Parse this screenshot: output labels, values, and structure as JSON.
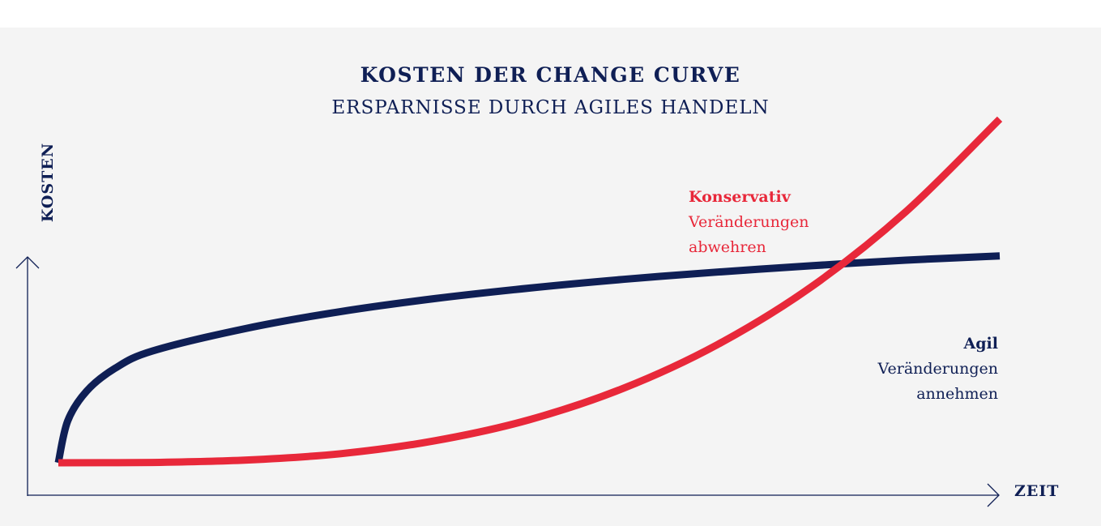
{
  "chart_data": {
    "type": "line",
    "title": "KOSTEN DER CHANGE CURVE",
    "subtitle": "ERSPARNISSE DURCH AGILES HANDELN",
    "xlabel": "ZEIT",
    "ylabel": "KOSTEN",
    "xlim": [
      0,
      100
    ],
    "ylim": [
      0,
      100
    ],
    "grid": false,
    "series": [
      {
        "name": "Konservativ",
        "description": "Veränderungen abwehren",
        "description_lines": [
          "Veränderungen",
          "abwehren"
        ],
        "color": "#e8283a",
        "x": [
          0,
          10,
          20,
          30,
          40,
          50,
          60,
          70,
          80,
          90,
          100
        ],
        "y": [
          0,
          0.1,
          0.8,
          2.6,
          6.3,
          12.3,
          21.3,
          33.8,
          50.4,
          71.8,
          98.4
        ]
      },
      {
        "name": "Agil",
        "description": "Veränderungen annehmen",
        "description_lines": [
          "Veränderungen",
          "annehmen"
        ],
        "color": "#0f1f55",
        "x": [
          0,
          1,
          3,
          6,
          10,
          20,
          30,
          40,
          50,
          60,
          70,
          80,
          90,
          100
        ],
        "y": [
          0,
          12,
          20.5,
          27,
          32,
          38.5,
          43.3,
          47,
          50,
          52.5,
          54.6,
          56.4,
          58,
          59.2
        ]
      }
    ]
  }
}
